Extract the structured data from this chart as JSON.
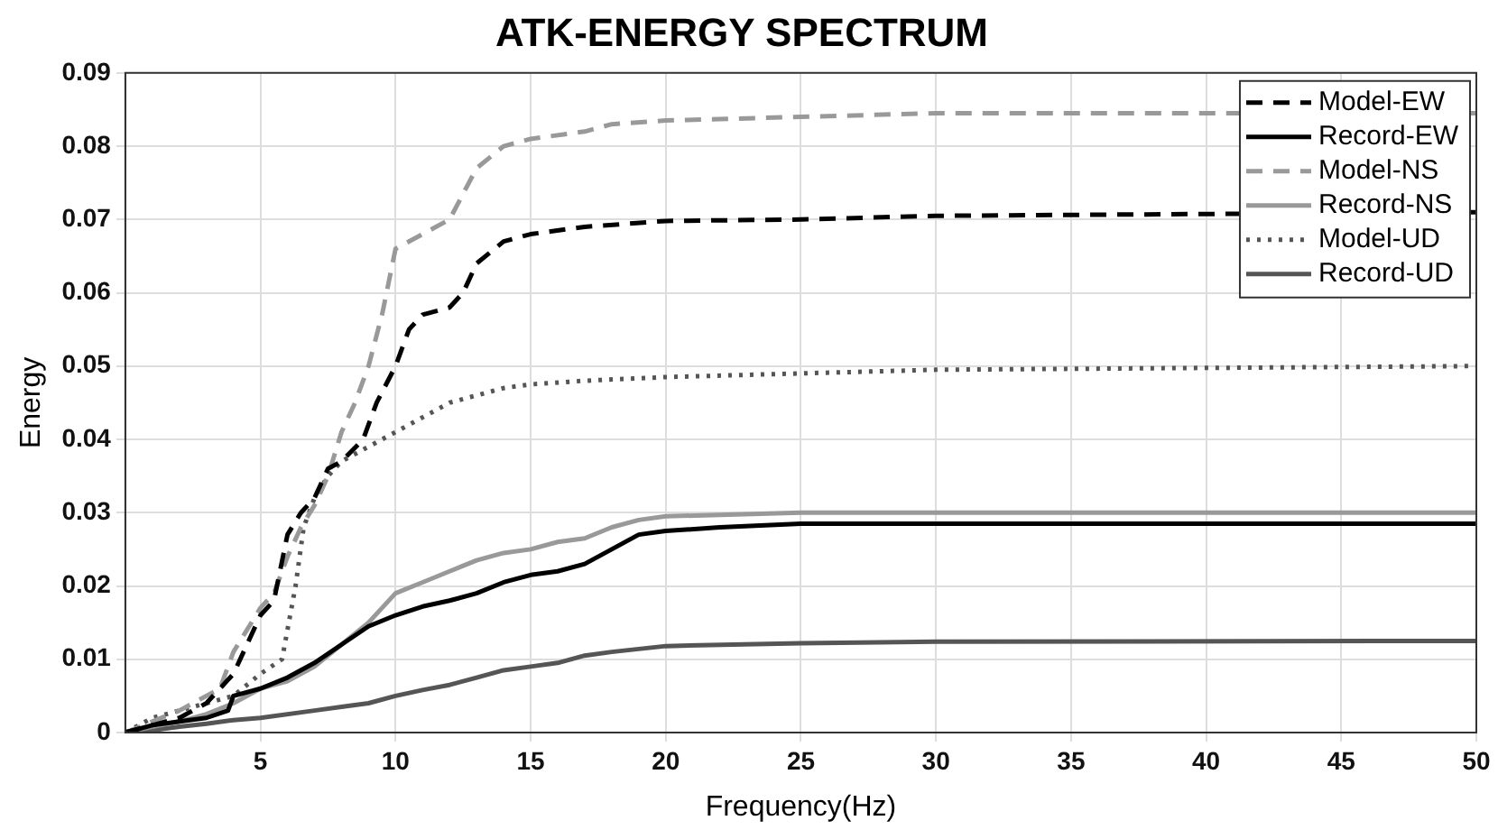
{
  "chart_data": {
    "type": "line",
    "title": "ATK-ENERGY SPECTRUM",
    "xlabel": "Frequency(Hz)",
    "ylabel": "Energy",
    "xlim": [
      0,
      50
    ],
    "xticks": [
      5,
      10,
      15,
      20,
      25,
      30,
      35,
      40,
      45,
      50
    ],
    "ylim": [
      0,
      0.09
    ],
    "yticks": [
      0,
      0.01,
      0.02,
      0.03,
      0.04,
      0.05,
      0.06,
      0.07,
      0.08,
      0.09
    ],
    "grid": true,
    "legend": "top right",
    "marker": "none",
    "series": [
      {
        "name": "Model-EW",
        "color": "#000000",
        "line_style": "dashed",
        "x": [
          0,
          1,
          2,
          3,
          4,
          4.5,
          5,
          5.5,
          6,
          6.5,
          7,
          7.5,
          8,
          8.8,
          9.3,
          10,
          10.5,
          11,
          12,
          12.5,
          13,
          14,
          15,
          17,
          20,
          25,
          30,
          50
        ],
        "values": [
          0,
          0.001,
          0.002,
          0.004,
          0.008,
          0.012,
          0.016,
          0.018,
          0.027,
          0.03,
          0.032,
          0.036,
          0.037,
          0.04,
          0.045,
          0.05,
          0.055,
          0.057,
          0.058,
          0.06,
          0.064,
          0.067,
          0.068,
          0.069,
          0.0698,
          0.07,
          0.0705,
          0.071
        ]
      },
      {
        "name": "Record-EW",
        "color": "#000000",
        "line_style": "solid",
        "x": [
          0,
          1,
          2,
          3,
          3.8,
          4,
          5,
          6,
          7,
          8,
          9,
          10,
          11,
          12,
          13,
          14,
          15,
          16,
          17,
          18,
          19,
          20,
          22,
          25,
          50
        ],
        "values": [
          0,
          0.001,
          0.0015,
          0.002,
          0.003,
          0.005,
          0.006,
          0.0075,
          0.0095,
          0.012,
          0.0145,
          0.016,
          0.0172,
          0.018,
          0.019,
          0.0205,
          0.0215,
          0.022,
          0.023,
          0.025,
          0.027,
          0.0275,
          0.028,
          0.0285,
          0.0285
        ]
      },
      {
        "name": "Model-NS",
        "color": "#999999",
        "line_style": "dashed",
        "x": [
          0,
          1,
          2,
          3,
          3.5,
          4,
          4.5,
          5,
          5.5,
          6,
          6.5,
          7,
          7.5,
          8,
          8.5,
          9,
          9.5,
          10,
          11,
          12,
          13,
          14,
          15,
          17,
          18,
          20,
          25,
          30,
          50
        ],
        "values": [
          0,
          0.0015,
          0.003,
          0.005,
          0.006,
          0.011,
          0.014,
          0.017,
          0.019,
          0.024,
          0.028,
          0.031,
          0.035,
          0.041,
          0.045,
          0.05,
          0.057,
          0.066,
          0.068,
          0.07,
          0.077,
          0.08,
          0.081,
          0.082,
          0.083,
          0.0835,
          0.084,
          0.0845,
          0.0845
        ]
      },
      {
        "name": "Record-NS",
        "color": "#999999",
        "line_style": "solid",
        "x": [
          0,
          1,
          2,
          3,
          4,
          5,
          6,
          7,
          8,
          9,
          10,
          11,
          12,
          13,
          14,
          15,
          16,
          17,
          18,
          19,
          20,
          25,
          50
        ],
        "values": [
          0,
          0.0008,
          0.0015,
          0.0025,
          0.004,
          0.006,
          0.007,
          0.009,
          0.012,
          0.015,
          0.019,
          0.0205,
          0.022,
          0.0235,
          0.0245,
          0.025,
          0.026,
          0.0265,
          0.028,
          0.029,
          0.0295,
          0.03,
          0.03
        ]
      },
      {
        "name": "Model-UD",
        "color": "#555555",
        "line_style": "dotted",
        "x": [
          0,
          1,
          2,
          3,
          4,
          5,
          5.8,
          6.3,
          6.6,
          7,
          7.5,
          8,
          9,
          10,
          11,
          12,
          13,
          14,
          15,
          17,
          20,
          25,
          30,
          50
        ],
        "values": [
          0,
          0.002,
          0.003,
          0.004,
          0.005,
          0.008,
          0.01,
          0.02,
          0.028,
          0.032,
          0.035,
          0.037,
          0.039,
          0.041,
          0.043,
          0.045,
          0.046,
          0.047,
          0.0475,
          0.048,
          0.0485,
          0.049,
          0.0495,
          0.05
        ]
      },
      {
        "name": "Record-UD",
        "color": "#555555",
        "line_style": "solid",
        "x": [
          0,
          1,
          2,
          3,
          4,
          5,
          7,
          8,
          9,
          10,
          11,
          12,
          13,
          14,
          15,
          16,
          17,
          18,
          20,
          25,
          30,
          50
        ],
        "values": [
          0,
          0.0003,
          0.0008,
          0.0012,
          0.0017,
          0.002,
          0.003,
          0.0035,
          0.004,
          0.005,
          0.0058,
          0.0065,
          0.0075,
          0.0085,
          0.009,
          0.0095,
          0.0105,
          0.011,
          0.0118,
          0.0122,
          0.0124,
          0.0125
        ]
      }
    ]
  }
}
